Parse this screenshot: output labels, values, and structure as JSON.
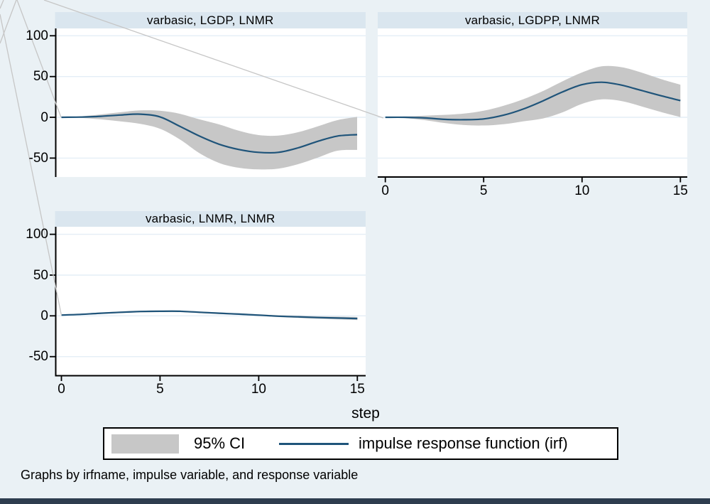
{
  "figure": {
    "xlabel": "step",
    "note": "Graphs by irfname, impulse variable, and response variable",
    "legend": {
      "ci_label": "95% CI",
      "irf_label": "impulse response function (irf)"
    },
    "y_tick_labels": [
      "100",
      "50",
      "0",
      "-50"
    ],
    "x_tick_labels": [
      "0",
      "5",
      "10",
      "15"
    ]
  },
  "colors": {
    "background": "#eaf1f5",
    "panel_header": "#dae6ef",
    "plot_bg": "#ffffff",
    "gridline": "#e4eef6",
    "ci_band": "#c7c7c7",
    "irf_line": "#1f547a",
    "axis": "#000000",
    "callout_line": "#c6c6c6",
    "bottom_strip": "#2e3d4f"
  },
  "chart_data": [
    {
      "type": "area+line",
      "title": "varbasic, LGDP, LNMR",
      "x": [
        0,
        1,
        2,
        3,
        4,
        5,
        6,
        7,
        8,
        9,
        10,
        11,
        12,
        13,
        14,
        15
      ],
      "irf": [
        0,
        0.3,
        1.2,
        2.8,
        3.8,
        0.5,
        -11,
        -23,
        -33,
        -39.5,
        -43,
        -43,
        -37.5,
        -29.5,
        -23,
        -21.3
      ],
      "ci_upper": [
        0,
        1.2,
        3.5,
        6.2,
        8.5,
        8,
        4.4,
        -2.5,
        -8.7,
        -16.5,
        -21.8,
        -22.4,
        -18.3,
        -11.1,
        -3.5,
        0.5
      ],
      "ci_lower": [
        0,
        -0.8,
        -2.5,
        -5,
        -8,
        -14,
        -27,
        -44,
        -56,
        -61.9,
        -63.9,
        -63,
        -57.5,
        -49.4,
        -41,
        -40
      ],
      "xticks": [
        0,
        5,
        10,
        15
      ],
      "yticks": [
        100,
        50,
        0,
        -50
      ],
      "xlim": [
        0,
        15
      ],
      "ylim": [
        -72.5,
        109
      ]
    },
    {
      "type": "area+line",
      "title": "varbasic, LGDPP, LNMR",
      "x": [
        0,
        1,
        2,
        3,
        4,
        5,
        6,
        7,
        8,
        9,
        10,
        11,
        12,
        13,
        14,
        15
      ],
      "irf": [
        0,
        0,
        -0.8,
        -2.5,
        -3,
        -2,
        2.5,
        10,
        20,
        31,
        40,
        43,
        39.5,
        33,
        26.5,
        20.5
      ],
      "ci_upper": [
        0,
        1,
        2,
        3,
        4.5,
        8,
        14,
        22,
        32,
        44,
        55,
        62.5,
        61.5,
        55,
        47,
        40
      ],
      "ci_lower": [
        0,
        -1,
        -3.5,
        -7,
        -9.5,
        -10,
        -8.5,
        -5,
        -1.5,
        6,
        16.5,
        22,
        20,
        13.5,
        6.5,
        0.3
      ],
      "xticks": [
        0,
        5,
        10,
        15
      ],
      "yticks": [
        100,
        50,
        0,
        -50
      ],
      "xlim": [
        0,
        15
      ],
      "ylim": [
        -72.5,
        109
      ]
    },
    {
      "type": "area+line",
      "title": "varbasic, LNMR, LNMR",
      "x": [
        0,
        1,
        2,
        3,
        4,
        5,
        6,
        7,
        8,
        9,
        10,
        11,
        12,
        13,
        14,
        15
      ],
      "irf": [
        1,
        1.8,
        3.2,
        4.4,
        5.3,
        5.6,
        5.6,
        4.4,
        3.2,
        2.1,
        0.9,
        -0.4,
        -1.2,
        -2.1,
        -2.7,
        -3.3
      ],
      "ci_upper": [
        1,
        2.4,
        4,
        5.4,
        6.3,
        6.6,
        6.6,
        5.4,
        4.2,
        3.1,
        1.9,
        0.7,
        0.1,
        -0.6,
        -1,
        -1.4
      ],
      "ci_lower": [
        1,
        1.2,
        2.4,
        3.4,
        4.3,
        4.6,
        4.6,
        3.4,
        2.2,
        1.1,
        -0.1,
        -1.5,
        -2.5,
        -3.6,
        -4.4,
        -5.2
      ],
      "xticks": [
        0,
        5,
        10,
        15
      ],
      "yticks": [
        100,
        50,
        0,
        -50
      ],
      "xlim": [
        0,
        15
      ],
      "ylim": [
        -72.5,
        109
      ]
    }
  ]
}
